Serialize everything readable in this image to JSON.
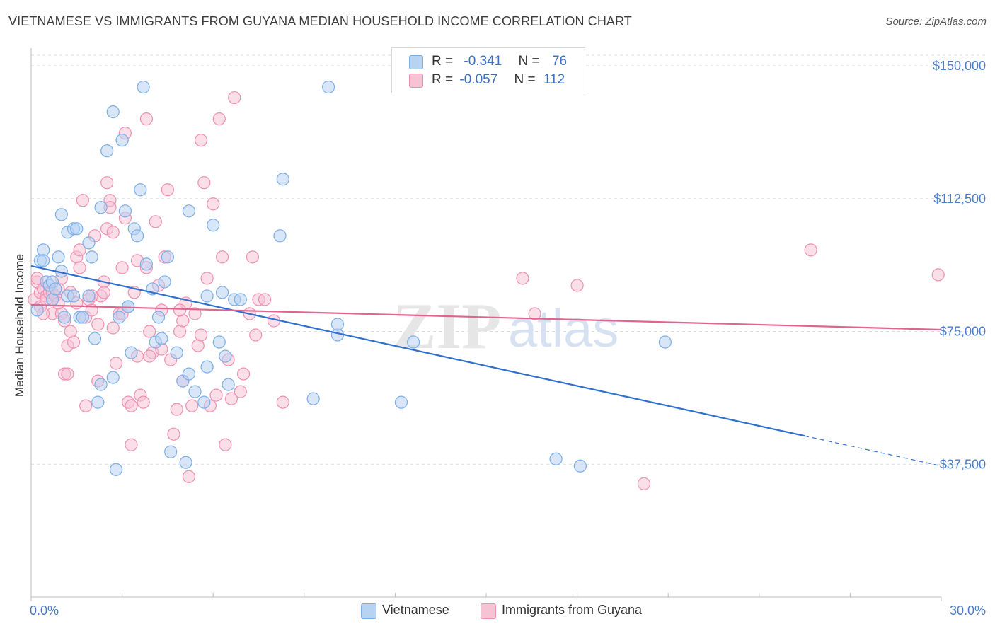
{
  "title": "VIETNAMESE VS IMMIGRANTS FROM GUYANA MEDIAN HOUSEHOLD INCOME CORRELATION CHART",
  "source": "Source: ZipAtlas.com",
  "watermark": {
    "zip": "ZIP",
    "atlas": "atlas"
  },
  "legend": {
    "rows": [
      {
        "r_label": "R =",
        "r_value": "-0.341",
        "n_label": "N =",
        "n_value": "76"
      },
      {
        "r_label": "R =",
        "r_value": "-0.057",
        "n_label": "N =",
        "n_value": "112"
      }
    ]
  },
  "bottom_legend": {
    "series1": "Vietnamese",
    "series2": "Immigrants from Guyana"
  },
  "colors": {
    "blue": "#7aaee8",
    "blue_fill": "#b8d2f2",
    "blue_line": "#2f6fd0",
    "pink": "#ef8fb0",
    "pink_fill": "#f6c3d5",
    "pink_line": "#e0648e",
    "tick": "#4a7cc9"
  },
  "chart_data": {
    "type": "scatter",
    "title": "VIETNAMESE VS IMMIGRANTS FROM GUYANA MEDIAN HOUSEHOLD INCOME CORRELATION CHART",
    "xlabel": "",
    "ylabel": "Median Household Income",
    "xlim": [
      0,
      30
    ],
    "ylim": [
      0,
      153000
    ],
    "x_tick_labels": [
      "0.0%",
      "30.0%"
    ],
    "y_ticks": [
      37500,
      75000,
      112500,
      150000
    ],
    "y_tick_labels": [
      "$37,500",
      "$75,000",
      "$112,500",
      "$150,000"
    ],
    "grid": true,
    "legend_position": "top-center",
    "series": [
      {
        "name": "Vietnamese",
        "color": "#7aaee8",
        "r": -0.341,
        "n": 76,
        "trend": {
          "x": [
            0,
            25.5
          ],
          "y": [
            93500,
            45500
          ],
          "dashed_to": [
            30,
            37000
          ]
        },
        "points": [
          [
            0.2,
            81000
          ],
          [
            0.3,
            95000
          ],
          [
            0.4,
            98000
          ],
          [
            0.4,
            95000
          ],
          [
            0.5,
            89000
          ],
          [
            0.6,
            88000
          ],
          [
            0.7,
            89000
          ],
          [
            0.7,
            84000
          ],
          [
            0.8,
            87000
          ],
          [
            0.9,
            96000
          ],
          [
            1.0,
            92000
          ],
          [
            1.0,
            108000
          ],
          [
            1.1,
            79000
          ],
          [
            1.2,
            85000
          ],
          [
            1.2,
            103000
          ],
          [
            1.4,
            85000
          ],
          [
            1.4,
            104000
          ],
          [
            1.5,
            104000
          ],
          [
            1.6,
            79000
          ],
          [
            1.7,
            79000
          ],
          [
            1.9,
            85000
          ],
          [
            1.9,
            100000
          ],
          [
            2.0,
            96000
          ],
          [
            2.1,
            73000
          ],
          [
            2.3,
            60000
          ],
          [
            2.3,
            110000
          ],
          [
            2.5,
            126000
          ],
          [
            2.7,
            62000
          ],
          [
            2.7,
            137000
          ],
          [
            2.8,
            36000
          ],
          [
            2.9,
            79000
          ],
          [
            3.0,
            129000
          ],
          [
            3.1,
            109000
          ],
          [
            3.2,
            82000
          ],
          [
            3.2,
            82000
          ],
          [
            3.3,
            69000
          ],
          [
            3.4,
            104000
          ],
          [
            3.5,
            102000
          ],
          [
            3.6,
            115000
          ],
          [
            3.7,
            144000
          ],
          [
            3.8,
            94000
          ],
          [
            4.0,
            87000
          ],
          [
            4.1,
            72000
          ],
          [
            4.2,
            79000
          ],
          [
            4.3,
            73000
          ],
          [
            4.4,
            89000
          ],
          [
            4.5,
            96000
          ],
          [
            4.6,
            41000
          ],
          [
            4.8,
            69000
          ],
          [
            5.0,
            61000
          ],
          [
            5.1,
            38000
          ],
          [
            5.2,
            63000
          ],
          [
            5.2,
            109000
          ],
          [
            5.4,
            58000
          ],
          [
            5.7,
            55000
          ],
          [
            5.8,
            65000
          ],
          [
            5.8,
            85000
          ],
          [
            6.0,
            105000
          ],
          [
            6.2,
            72000
          ],
          [
            6.3,
            86000
          ],
          [
            6.4,
            68000
          ],
          [
            6.5,
            60000
          ],
          [
            6.7,
            84000
          ],
          [
            6.9,
            84000
          ],
          [
            8.2,
            102000
          ],
          [
            8.3,
            118000
          ],
          [
            9.3,
            56000
          ],
          [
            9.8,
            144000
          ],
          [
            10.1,
            74000
          ],
          [
            10.1,
            77000
          ],
          [
            12.2,
            55000
          ],
          [
            12.6,
            72000
          ],
          [
            17.3,
            39000
          ],
          [
            18.1,
            37000
          ],
          [
            20.9,
            72000
          ],
          [
            2.2,
            55000
          ]
        ]
      },
      {
        "name": "Immigrants from Guyana",
        "color": "#ef8fb0",
        "r": -0.057,
        "n": 112,
        "trend": {
          "x": [
            0,
            30
          ],
          "y": [
            82500,
            75500
          ]
        },
        "points": [
          [
            0.1,
            84000
          ],
          [
            0.2,
            89000
          ],
          [
            0.3,
            86000
          ],
          [
            0.3,
            82000
          ],
          [
            0.4,
            87000
          ],
          [
            0.5,
            85000
          ],
          [
            0.5,
            84000
          ],
          [
            0.6,
            88000
          ],
          [
            0.6,
            86000
          ],
          [
            0.7,
            80000
          ],
          [
            0.7,
            86000
          ],
          [
            0.8,
            85000
          ],
          [
            0.9,
            87000
          ],
          [
            1.0,
            90000
          ],
          [
            1.0,
            80000
          ],
          [
            1.1,
            63000
          ],
          [
            1.1,
            78000
          ],
          [
            1.2,
            71000
          ],
          [
            1.2,
            63000
          ],
          [
            1.3,
            86000
          ],
          [
            1.4,
            72000
          ],
          [
            1.5,
            96000
          ],
          [
            1.6,
            93000
          ],
          [
            1.6,
            98000
          ],
          [
            1.7,
            112000
          ],
          [
            1.8,
            79000
          ],
          [
            1.8,
            54000
          ],
          [
            1.9,
            84000
          ],
          [
            2.0,
            81000
          ],
          [
            2.1,
            102000
          ],
          [
            2.2,
            77000
          ],
          [
            2.2,
            61000
          ],
          [
            2.3,
            85000
          ],
          [
            2.4,
            89000
          ],
          [
            2.4,
            86000
          ],
          [
            2.5,
            104000
          ],
          [
            2.5,
            117000
          ],
          [
            2.6,
            112000
          ],
          [
            2.6,
            110000
          ],
          [
            2.7,
            103000
          ],
          [
            2.8,
            66000
          ],
          [
            2.9,
            80000
          ],
          [
            3.0,
            93000
          ],
          [
            3.0,
            80000
          ],
          [
            3.1,
            107000
          ],
          [
            3.1,
            131000
          ],
          [
            3.2,
            55000
          ],
          [
            3.3,
            43000
          ],
          [
            3.3,
            54000
          ],
          [
            3.4,
            86000
          ],
          [
            3.5,
            68000
          ],
          [
            3.6,
            57000
          ],
          [
            3.7,
            55000
          ],
          [
            3.8,
            93000
          ],
          [
            3.8,
            135000
          ],
          [
            3.9,
            75000
          ],
          [
            4.0,
            69000
          ],
          [
            4.1,
            106000
          ],
          [
            4.2,
            88000
          ],
          [
            4.3,
            81000
          ],
          [
            4.3,
            70000
          ],
          [
            4.4,
            96000
          ],
          [
            4.5,
            115000
          ],
          [
            4.6,
            67000
          ],
          [
            4.7,
            46000
          ],
          [
            4.8,
            53000
          ],
          [
            4.9,
            75000
          ],
          [
            5.0,
            78000
          ],
          [
            5.0,
            61000
          ],
          [
            5.1,
            83000
          ],
          [
            5.2,
            34000
          ],
          [
            5.3,
            54000
          ],
          [
            5.4,
            80000
          ],
          [
            5.5,
            71000
          ],
          [
            5.6,
            129000
          ],
          [
            5.7,
            117000
          ],
          [
            5.8,
            90000
          ],
          [
            5.9,
            54000
          ],
          [
            6.0,
            111000
          ],
          [
            6.1,
            57000
          ],
          [
            6.2,
            135000
          ],
          [
            6.3,
            96000
          ],
          [
            6.4,
            43000
          ],
          [
            6.5,
            67000
          ],
          [
            6.6,
            56000
          ],
          [
            6.7,
            141000
          ],
          [
            7.0,
            63000
          ],
          [
            7.2,
            80000
          ],
          [
            7.3,
            96000
          ],
          [
            7.4,
            74000
          ],
          [
            7.5,
            84000
          ],
          [
            7.7,
            84000
          ],
          [
            8.0,
            78000
          ],
          [
            8.3,
            55000
          ],
          [
            16.2,
            90000
          ],
          [
            16.6,
            80000
          ],
          [
            18.0,
            88000
          ],
          [
            20.2,
            32000
          ],
          [
            25.7,
            98000
          ],
          [
            29.9,
            91000
          ],
          [
            0.2,
            90000
          ],
          [
            0.9,
            83000
          ],
          [
            1.5,
            83000
          ],
          [
            2.0,
            85000
          ],
          [
            3.5,
            95000
          ],
          [
            4.9,
            81000
          ],
          [
            0.4,
            80000
          ],
          [
            1.3,
            75000
          ],
          [
            2.7,
            76000
          ],
          [
            3.9,
            68000
          ],
          [
            5.6,
            74000
          ],
          [
            6.9,
            58000
          ]
        ]
      }
    ]
  }
}
